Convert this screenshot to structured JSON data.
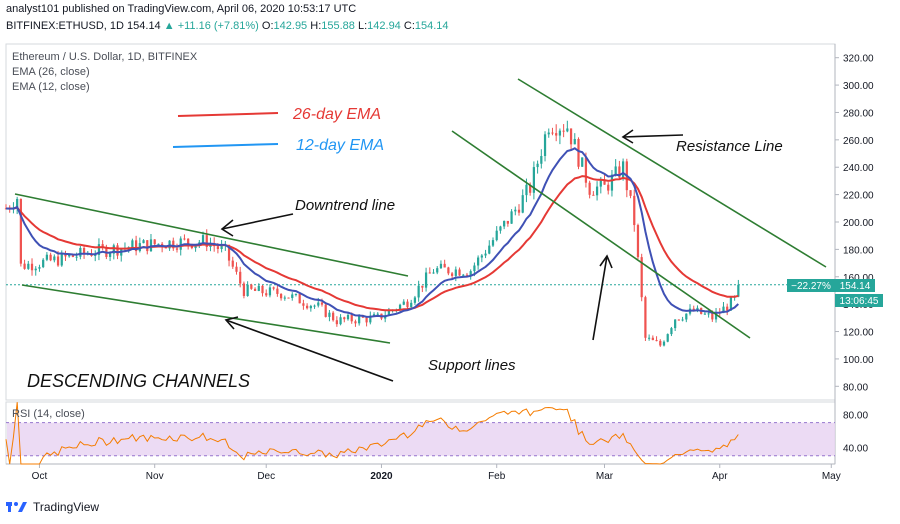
{
  "header": {
    "publisher_line": "analyst101 published on TradingView.com, April 06, 2020 10:53:17 UTC",
    "symbol": "BITFINEX:ETHUSD, 1D",
    "price": "154.14",
    "change": "+11.16 (+7.81%)",
    "ohlc_o_label": "O:",
    "ohlc_o": "142.95",
    "ohlc_h_label": "H:",
    "ohlc_h": "155.88",
    "ohlc_l_label": "L:",
    "ohlc_l": "142.94",
    "ohlc_c_label": "C:",
    "ohlc_c": "154.14"
  },
  "legend": {
    "title": "Ethereum / U.S. Dollar, 1D, BITFINEX",
    "ema26": "EMA (26, close)",
    "ema12": "EMA (12, close)"
  },
  "annotations": {
    "ema26_label": "26-day EMA",
    "ema12_label": "12-day EMA",
    "downtrend": "Downtrend line",
    "resistance": "Resistance Line",
    "support": "Support lines",
    "channels": "DESCENDING CHANNELS"
  },
  "price_tag": {
    "pct": "−22.27%",
    "price": "154.14",
    "countdown": "13:06:45"
  },
  "rsi": {
    "label": "RSI (14, close)"
  },
  "footer": {
    "brand": "TradingView"
  },
  "colors": {
    "up": "#26a69a",
    "down": "#ef5350",
    "ema26": "#e53935",
    "ema12": "#3f51b5",
    "trend": "#2e7d32",
    "rsi_line": "#f57c00",
    "rsi_band": "#e1bee7",
    "annotation_red": "#e53935",
    "annotation_blue": "#2196f3"
  },
  "chart_data": {
    "type": "candlestick",
    "symbol": "BITFINEX:ETHUSD",
    "interval": "1D",
    "ylim": [
      70,
      330
    ],
    "y_ticks": [
      80,
      100,
      120,
      140,
      160,
      180,
      200,
      220,
      240,
      260,
      280,
      300,
      320
    ],
    "x_tick_labels": [
      "Oct",
      "Nov",
      "Dec",
      "2020",
      "Feb",
      "Mar",
      "Apr",
      "May"
    ],
    "x_tick_dates": [
      "2019-10-01",
      "2019-11-01",
      "2019-12-01",
      "2020-01-01",
      "2020-02-01",
      "2020-03-01",
      "2020-04-01",
      "2020-05-01"
    ],
    "x_range": [
      "2019-09-22",
      "2020-05-02"
    ],
    "anchors": [
      {
        "date": "2019-09-22",
        "price": 210
      },
      {
        "date": "2019-09-25",
        "price": 218
      },
      {
        "date": "2019-09-26",
        "price": 168
      },
      {
        "date": "2019-10-05",
        "price": 172
      },
      {
        "date": "2019-10-15",
        "price": 178
      },
      {
        "date": "2019-10-25",
        "price": 182
      },
      {
        "date": "2019-11-05",
        "price": 185
      },
      {
        "date": "2019-11-15",
        "price": 186
      },
      {
        "date": "2019-11-20",
        "price": 178
      },
      {
        "date": "2019-11-25",
        "price": 150
      },
      {
        "date": "2019-12-05",
        "price": 148
      },
      {
        "date": "2019-12-15",
        "price": 138
      },
      {
        "date": "2019-12-20",
        "price": 128
      },
      {
        "date": "2019-12-31",
        "price": 130
      },
      {
        "date": "2020-01-08",
        "price": 142
      },
      {
        "date": "2020-01-15",
        "price": 165
      },
      {
        "date": "2020-01-25",
        "price": 165
      },
      {
        "date": "2020-02-05",
        "price": 205
      },
      {
        "date": "2020-02-10",
        "price": 225
      },
      {
        "date": "2020-02-15",
        "price": 272
      },
      {
        "date": "2020-02-20",
        "price": 270
      },
      {
        "date": "2020-02-26",
        "price": 225
      },
      {
        "date": "2020-03-01",
        "price": 225
      },
      {
        "date": "2020-03-06",
        "price": 240
      },
      {
        "date": "2020-03-09",
        "price": 200
      },
      {
        "date": "2020-03-12",
        "price": 115
      },
      {
        "date": "2020-03-16",
        "price": 110
      },
      {
        "date": "2020-03-20",
        "price": 130
      },
      {
        "date": "2020-03-25",
        "price": 135
      },
      {
        "date": "2020-03-30",
        "price": 130
      },
      {
        "date": "2020-04-05",
        "price": 143
      },
      {
        "date": "2020-04-06",
        "price": 154
      }
    ],
    "last_close": 154.14,
    "change_from_ref_pct": -22.27,
    "rsi_ylim": [
      20,
      95
    ],
    "rsi_ticks": [
      40,
      80
    ],
    "rsi_band": [
      30,
      70
    ]
  }
}
